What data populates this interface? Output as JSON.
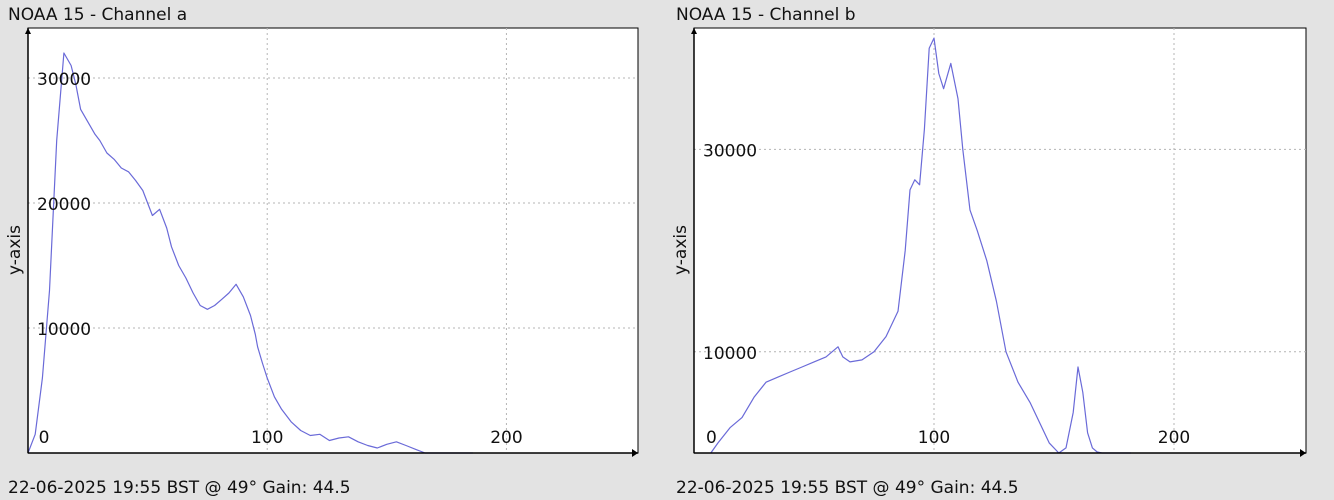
{
  "chart_data": [
    {
      "type": "line",
      "title": "NOAA 15 - Channel a",
      "footer": "22-06-2025 19:55 BST @ 49° Gain: 44.5",
      "ylabel": "y-axis",
      "xlabel": "",
      "xlim": [
        0,
        255
      ],
      "ylim": [
        0,
        34000
      ],
      "x_ticks": [
        0,
        100,
        200
      ],
      "y_ticks": [
        10000,
        20000,
        30000
      ],
      "grid": true,
      "line_color": "#6a6ad8",
      "series": [
        {
          "x": [
            0,
            3,
            6,
            9,
            12,
            15,
            18,
            20,
            22,
            25,
            28,
            30,
            33,
            36,
            39,
            42,
            45,
            48,
            50,
            52,
            55,
            58,
            60,
            63,
            66,
            69,
            72,
            75,
            78,
            81,
            84,
            87,
            90,
            93,
            95,
            96,
            98,
            100,
            103,
            106,
            110,
            114,
            118,
            122,
            126,
            130,
            134,
            138,
            142,
            146,
            150,
            154,
            158,
            162,
            166,
            170,
            174,
            178,
            182,
            186
          ],
          "y": [
            0,
            1500,
            6000,
            13000,
            25000,
            32000,
            31000,
            29500,
            27500,
            26500,
            25500,
            25000,
            24000,
            23500,
            22800,
            22500,
            21800,
            21000,
            20000,
            19000,
            19500,
            18000,
            16500,
            15000,
            14000,
            12800,
            11800,
            11500,
            11800,
            12300,
            12800,
            13500,
            12500,
            11000,
            9500,
            8500,
            7200,
            6000,
            4500,
            3500,
            2500,
            1800,
            1400,
            1500,
            1000,
            1200,
            1300,
            900,
            600,
            400,
            700,
            900,
            600,
            300,
            0,
            0,
            0,
            0,
            0,
            0
          ]
        }
      ]
    },
    {
      "type": "line",
      "title": "NOAA 15 - Channel b",
      "footer": "22-06-2025 19:55 BST @ 49° Gain: 44.5",
      "ylabel": "y-axis",
      "xlabel": "",
      "xlim": [
        0,
        255
      ],
      "ylim": [
        0,
        42000
      ],
      "x_ticks": [
        100,
        200
      ],
      "y_ticks": [
        10000,
        30000
      ],
      "x0_label": "0",
      "grid": true,
      "line_color": "#6a6ad8",
      "series": [
        {
          "x": [
            7,
            10,
            15,
            20,
            25,
            30,
            35,
            40,
            45,
            50,
            55,
            60,
            62,
            65,
            70,
            75,
            80,
            85,
            88,
            90,
            92,
            94,
            96,
            98,
            100,
            102,
            104,
            107,
            110,
            112,
            115,
            118,
            122,
            126,
            130,
            135,
            140,
            144,
            148,
            152,
            155,
            158,
            160,
            162,
            164,
            166,
            168,
            170,
            174,
            178,
            182
          ],
          "y": [
            0,
            1000,
            2500,
            3500,
            5500,
            7000,
            7500,
            8000,
            8500,
            9000,
            9500,
            10500,
            9500,
            9000,
            9200,
            10000,
            11500,
            14000,
            20000,
            26000,
            27000,
            26500,
            32000,
            40000,
            41000,
            37500,
            36000,
            38500,
            35000,
            30000,
            24000,
            22000,
            19000,
            15000,
            10000,
            7000,
            5000,
            3000,
            1000,
            0,
            500,
            4000,
            8500,
            6000,
            2000,
            500,
            100,
            0,
            0,
            0,
            0
          ]
        }
      ]
    }
  ]
}
